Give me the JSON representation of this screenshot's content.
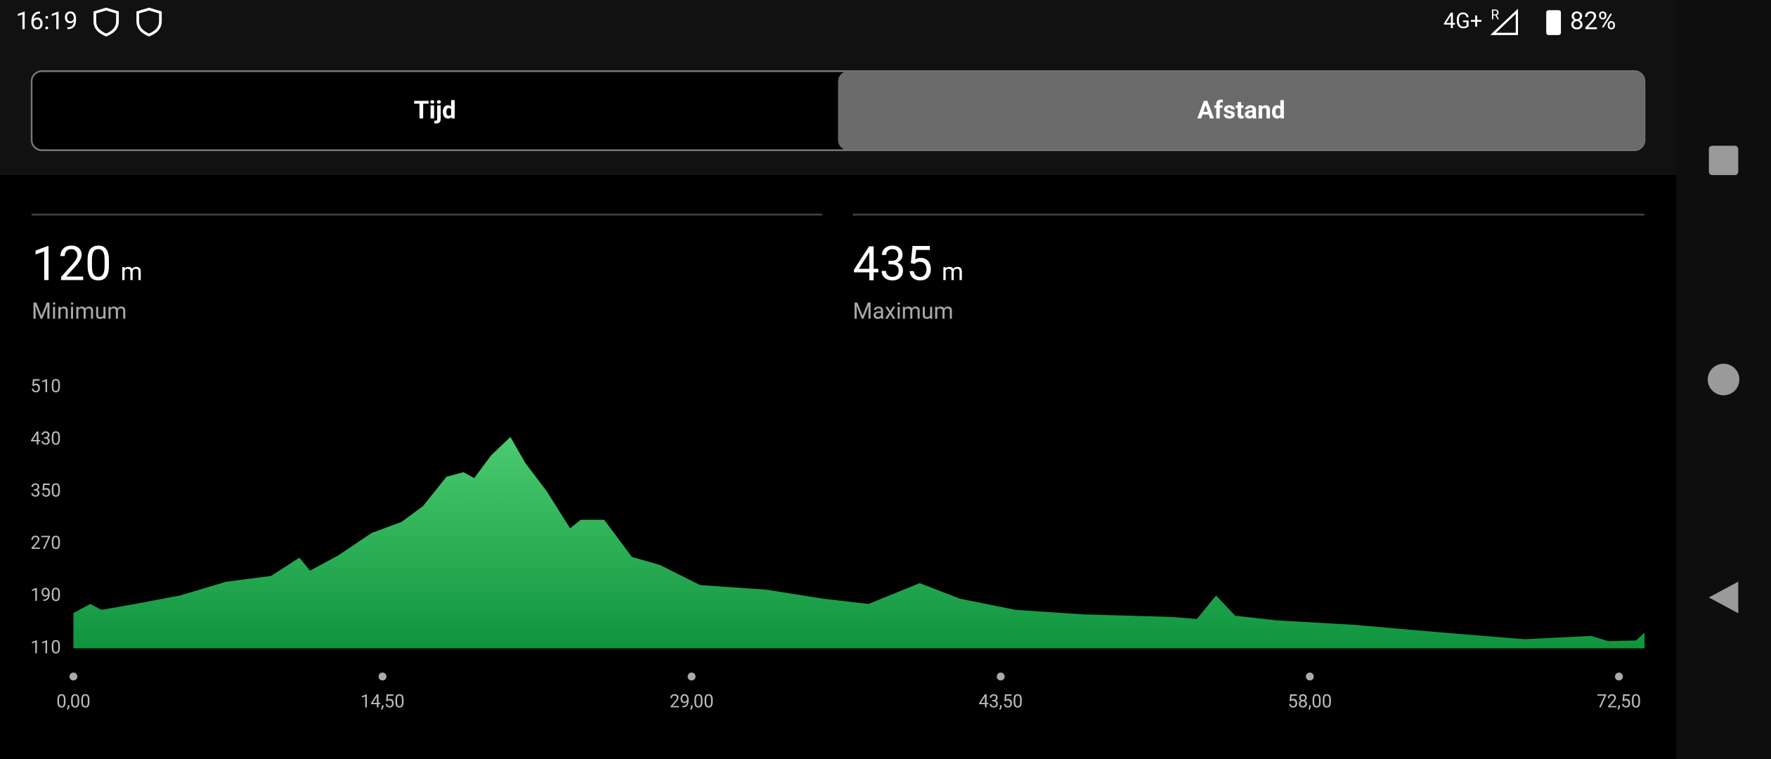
{
  "status_bar": {
    "time": "16:19",
    "network": "4G+",
    "roaming": "R",
    "battery": "82%"
  },
  "tabs": [
    "Tijd",
    "Afstand"
  ],
  "selected_tab": 1,
  "stats": [
    {
      "value": 120,
      "unit": "m",
      "label": "Minimum"
    },
    {
      "value": 435,
      "unit": "m",
      "label": "Maximum"
    }
  ],
  "chart_data": {
    "type": "area",
    "x": [
      0,
      0.79,
      1.32,
      2.9,
      5.0,
      7.15,
      9.27,
      10.6,
      11.1,
      12.4,
      14.0,
      15.4,
      16.4,
      17.5,
      18.3,
      18.8,
      19.6,
      20.5,
      21.2,
      22.2,
      23.3,
      23.8,
      24.9,
      26.2,
      27.5,
      29.4,
      32.5,
      35.2,
      37.3,
      39.7,
      41.6,
      44.2,
      47.4,
      51.6,
      52.7,
      53.6,
      54.5,
      56.4,
      60.1,
      64.3,
      68.1,
      71.2,
      72.0,
      73.3,
      73.7
    ],
    "values": [
      164,
      178,
      169,
      178,
      191,
      212,
      221,
      249,
      229,
      252,
      287,
      304,
      328,
      373,
      380,
      371,
      406,
      434,
      394,
      351,
      294,
      307,
      307,
      250,
      238,
      207,
      200,
      186,
      178,
      210,
      186,
      169,
      162,
      158,
      155,
      191,
      160,
      153,
      146,
      134,
      124,
      129,
      121,
      122,
      134
    ],
    "gradient": [
      "#4ccb70",
      "#0f943e"
    ],
    "xlim": [
      0,
      73.7
    ],
    "ylim": [
      110,
      510
    ],
    "xticks": [
      {
        "value": 0,
        "label": "0,00"
      },
      {
        "value": 14.5,
        "label": "14,50"
      },
      {
        "value": 29,
        "label": "29,00"
      },
      {
        "value": 43.5,
        "label": "43,50"
      },
      {
        "value": 58,
        "label": "58,00"
      },
      {
        "value": 72.5,
        "label": "72,50"
      }
    ],
    "yticks": [
      110,
      190,
      270,
      350,
      430,
      510
    ]
  }
}
